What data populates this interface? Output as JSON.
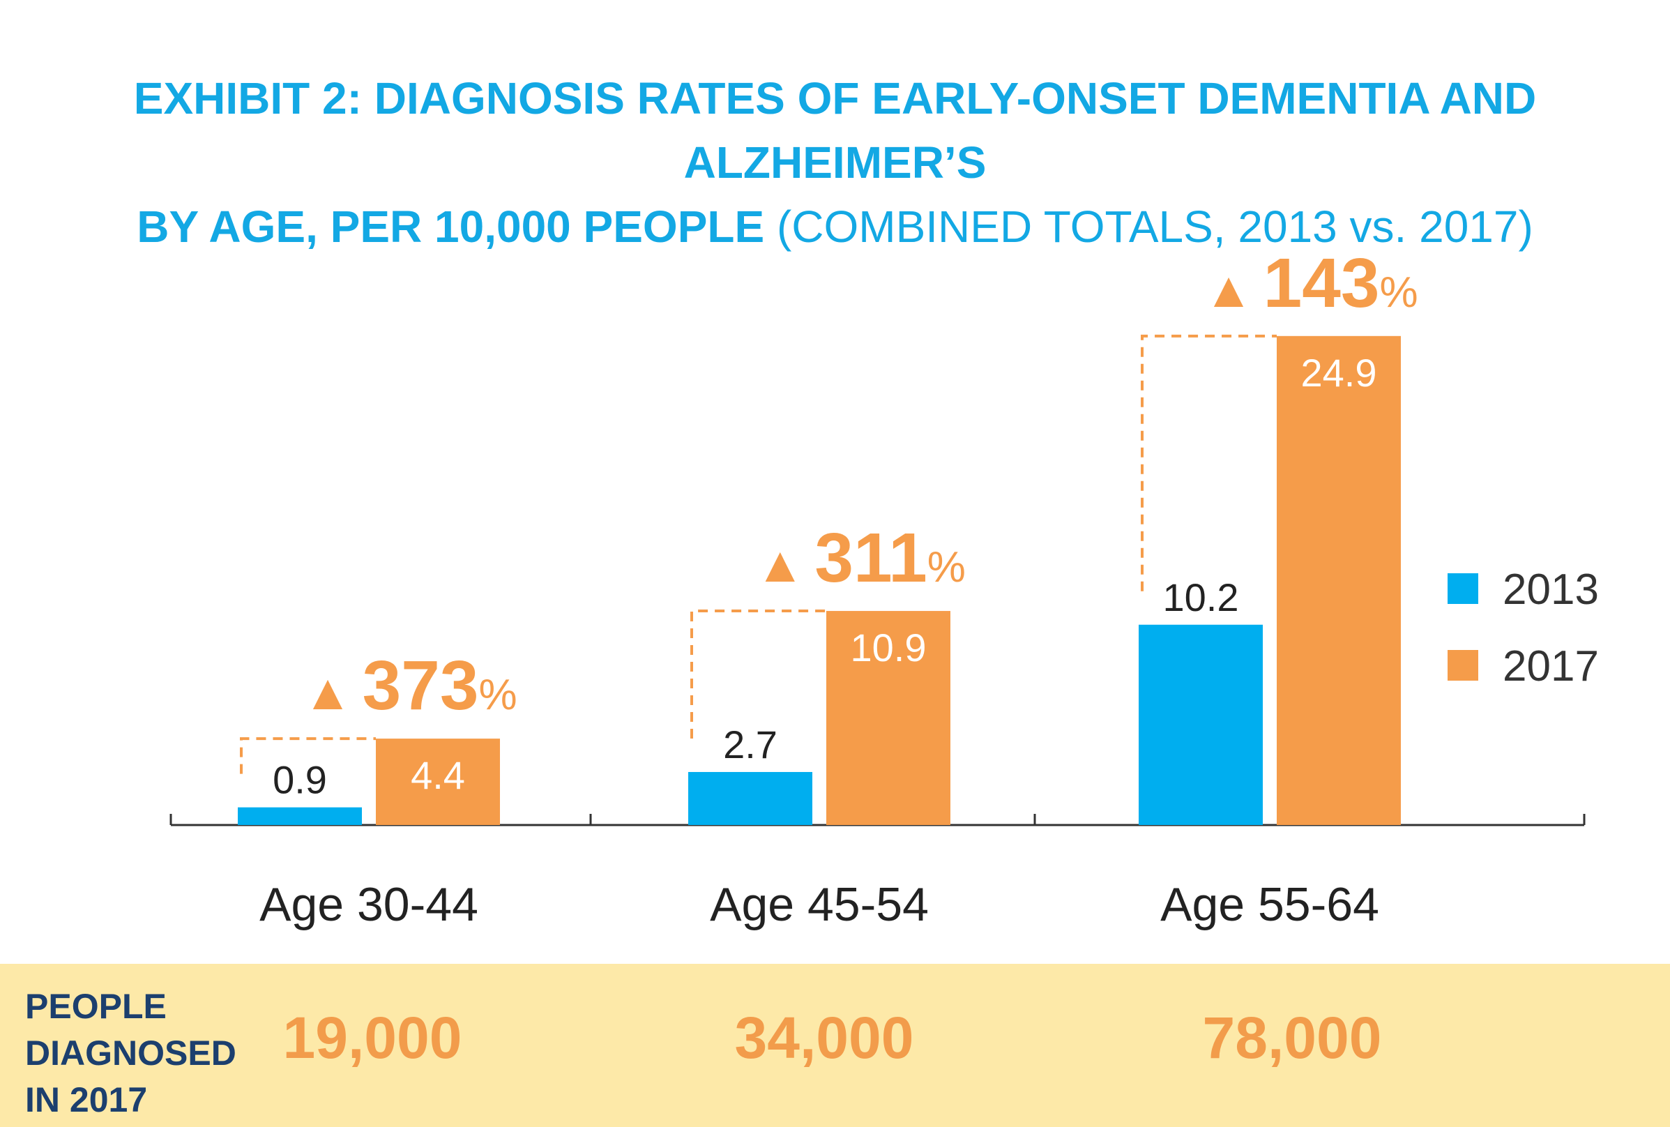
{
  "title": {
    "line1": "EXHIBIT 2: DIAGNOSIS RATES OF EARLY-ONSET DEMENTIA AND ALZHEIMER’S",
    "line2_bold": "BY AGE, PER 10,000 PEOPLE",
    "line2_regular": "(COMBINED TOTALS, 2013 vs. 2017)"
  },
  "chart_data": {
    "type": "bar",
    "categories": [
      "Age 30-44",
      "Age 45-54",
      "Age 55-64"
    ],
    "series": [
      {
        "name": "2013",
        "values": [
          0.9,
          2.7,
          10.2
        ],
        "labels": [
          "0.9",
          "2.7",
          "10.2"
        ],
        "color": "#00aeef"
      },
      {
        "name": "2017",
        "values": [
          4.4,
          10.9,
          24.9
        ],
        "labels": [
          "4.4",
          "10.9",
          "24.9"
        ],
        "color": "#f59c4a"
      }
    ],
    "changes": [
      {
        "symbol": "▲",
        "value": "373",
        "unit": "%"
      },
      {
        "symbol": "▲",
        "value": "311",
        "unit": "%"
      },
      {
        "symbol": "▲",
        "value": "143",
        "unit": "%"
      }
    ],
    "ylim": [
      0,
      25
    ],
    "grid": false,
    "legend_position": "right"
  },
  "footer": {
    "label_lines": [
      "PEOPLE",
      "DIAGNOSED",
      "IN 2017"
    ],
    "values": [
      "19,000",
      "34,000",
      "78,000"
    ]
  },
  "colors": {
    "title": "#13a8e4",
    "series_2013": "#00aeef",
    "series_2017": "#f59c4a",
    "footer_bg": "#fde9a8",
    "footer_label": "#1c3f6e",
    "footer_value": "#f29c4b"
  }
}
